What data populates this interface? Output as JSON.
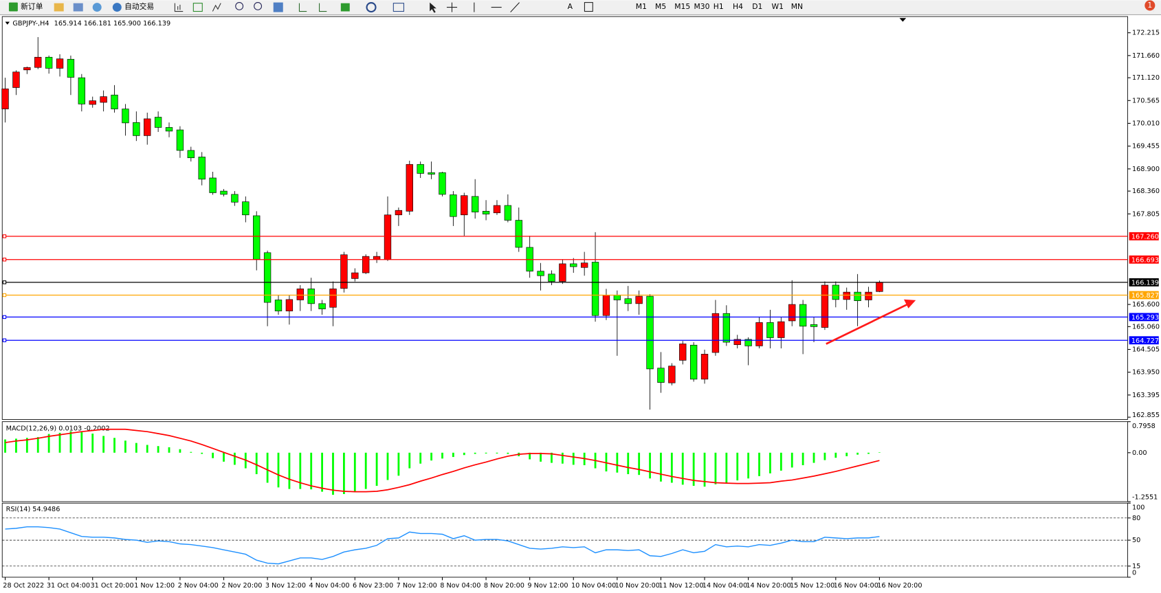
{
  "toolbar": {
    "new_order": "新订单",
    "auto_trading": "自动交易",
    "timeframes": [
      "M1",
      "M5",
      "M15",
      "M30",
      "H1",
      "H4",
      "D1",
      "W1",
      "MN"
    ],
    "badge": "1"
  },
  "chart_data": [
    {
      "type": "candlestick",
      "title": "GBPJPY-,H4",
      "subtitle": "165.914 166.181 165.900 166.139",
      "categories": [
        "28 Oct 2022",
        null,
        null,
        null,
        "31 Oct 04:00",
        null,
        null,
        null,
        "31 Oct 20:00",
        null,
        null,
        null,
        "1 Nov 12:00",
        null,
        null,
        null,
        "2 Nov 04:00",
        null,
        null,
        null,
        "2 Nov 20:00",
        null,
        null,
        null,
        "3 Nov 12:00",
        null,
        null,
        null,
        "4 Nov 04:00",
        null,
        null,
        null,
        "6 Nov 23:00",
        null,
        null,
        null,
        "7 Nov 12:00",
        null,
        null,
        null,
        "8 Nov 04:00",
        null,
        null,
        null,
        "8 Nov 20:00",
        null,
        null,
        null,
        "9 Nov 12:00",
        null,
        null,
        null,
        "10 Nov 04:00",
        null,
        null,
        null,
        "10 Nov 20:00",
        null,
        null,
        null,
        "11 Nov 12:00",
        null,
        null,
        null,
        "14 Nov 04:00",
        null,
        null,
        null,
        "14 Nov 20:00",
        null,
        null,
        null,
        "15 Nov 12:00",
        null,
        null,
        null,
        "16 Nov 04:00",
        null,
        null,
        null,
        "16 Nov 20:00"
      ],
      "open": [
        170.36,
        170.88,
        171.31,
        171.37,
        171.62,
        171.35,
        171.57,
        171.12,
        170.47,
        170.52,
        170.7,
        170.36,
        170.03,
        169.71,
        170.16,
        169.91,
        169.85,
        169.35,
        169.19,
        168.68,
        168.36,
        168.28,
        168.1,
        167.76,
        166.86,
        165.71,
        165.44,
        165.71,
        165.98,
        165.62,
        165.53,
        165.99,
        166.23,
        166.37,
        166.7,
        166.7,
        167.78,
        167.87,
        169.01,
        168.81,
        168.81,
        168.27,
        167.78,
        168.23,
        167.87,
        167.83,
        168.01,
        167.65,
        166.99,
        166.41,
        166.34,
        166.16,
        166.59,
        166.5,
        166.63,
        165.33,
        165.83,
        165.74,
        165.62,
        165.8,
        164.05,
        163.69,
        164.24,
        164.61,
        163.78,
        164.43,
        165.38,
        164.62,
        164.75,
        164.59,
        165.16,
        164.79,
        165.2,
        165.6,
        165.11,
        165.04,
        166.07,
        165.72,
        165.9,
        165.71,
        165.914
      ],
      "high": [
        171.12,
        171.3,
        171.39,
        172.11,
        171.66,
        171.69,
        171.66,
        171.21,
        170.66,
        170.81,
        170.94,
        170.48,
        170.3,
        170.27,
        170.3,
        170.03,
        169.94,
        169.44,
        169.31,
        168.83,
        168.41,
        168.36,
        168.23,
        167.87,
        166.91,
        165.83,
        165.83,
        166.07,
        166.25,
        165.71,
        166.16,
        166.88,
        166.48,
        166.82,
        166.88,
        168.23,
        167.96,
        169.1,
        169.08,
        169.08,
        168.83,
        168.36,
        168.32,
        168.65,
        168.14,
        168.14,
        168.28,
        167.96,
        167.27,
        166.61,
        166.43,
        166.7,
        166.73,
        166.88,
        167.36,
        165.98,
        165.94,
        166.05,
        165.94,
        165.85,
        164.44,
        164.17,
        164.71,
        164.68,
        164.5,
        165.71,
        165.58,
        164.86,
        164.8,
        165.29,
        165.47,
        165.29,
        166.19,
        165.71,
        165.29,
        166.16,
        166.16,
        166.01,
        166.34,
        166.03,
        166.181
      ],
      "low": [
        170.03,
        170.7,
        171.21,
        171.33,
        171.22,
        171.15,
        170.7,
        170.3,
        170.39,
        170.3,
        170.27,
        169.71,
        169.58,
        169.49,
        169.8,
        169.67,
        169.17,
        169.08,
        168.5,
        168.27,
        168.23,
        168.0,
        167.6,
        166.43,
        165.07,
        165.35,
        165.11,
        165.44,
        165.44,
        165.35,
        165.07,
        165.89,
        166.16,
        166.34,
        166.61,
        166.66,
        167.51,
        167.78,
        168.68,
        168.65,
        168.23,
        167.51,
        167.27,
        167.69,
        167.65,
        167.78,
        167.6,
        166.88,
        166.25,
        165.94,
        166.07,
        166.1,
        166.37,
        166.3,
        165.18,
        165.22,
        164.35,
        165.44,
        165.35,
        163.04,
        163.45,
        163.63,
        164.14,
        163.72,
        163.67,
        164.35,
        164.59,
        164.53,
        164.12,
        164.53,
        164.53,
        164.53,
        165.07,
        164.39,
        164.68,
        164.98,
        165.53,
        165.47,
        165.07,
        165.53,
        165.9
      ],
      "close": [
        170.85,
        171.26,
        171.37,
        171.62,
        171.35,
        171.58,
        171.13,
        170.48,
        170.56,
        170.66,
        170.36,
        170.02,
        169.71,
        170.12,
        169.91,
        169.82,
        169.35,
        169.17,
        168.65,
        168.32,
        168.28,
        168.09,
        167.78,
        166.7,
        165.65,
        165.44,
        165.72,
        165.98,
        165.62,
        165.49,
        165.98,
        166.81,
        166.37,
        166.77,
        166.77,
        167.78,
        167.89,
        169.01,
        168.79,
        168.77,
        168.28,
        167.74,
        168.25,
        167.85,
        167.8,
        168.01,
        167.65,
        166.99,
        166.41,
        166.3,
        166.16,
        166.59,
        166.52,
        166.61,
        165.33,
        165.83,
        165.71,
        165.62,
        165.8,
        164.03,
        163.7,
        164.1,
        164.64,
        163.78,
        164.39,
        165.38,
        164.68,
        164.75,
        164.59,
        165.16,
        164.79,
        165.18,
        165.6,
        165.07,
        165.06,
        166.07,
        165.72,
        165.9,
        165.69,
        165.9,
        166.139
      ],
      "up_color": "#ff0000",
      "down_color": "#00ff00",
      "ylim": [
        162.8,
        172.61
      ],
      "yticks": [
        172.215,
        {
          "value": 171.66,
          "label": "171.660"
        },
        {
          "value": 171.12,
          "label": "171.120"
        },
        170.565,
        {
          "value": 170.01,
          "label": "170.010"
        },
        169.455,
        {
          "value": 168.9,
          "label": "168.900"
        },
        {
          "value": 168.36,
          "label": "168.360"
        },
        167.805,
        {
          "value": 165.6,
          "label": "165.600"
        },
        {
          "value": 165.06,
          "label": "165.060"
        },
        164.505,
        {
          "value": 163.95,
          "label": "163.950"
        },
        163.395,
        162.855
      ],
      "levels": [
        {
          "value": 167.26,
          "label": "167.260",
          "color": "#ff0000"
        },
        {
          "value": 166.693,
          "color": "#ff0000"
        },
        {
          "value": 166.139,
          "color": "#000000"
        },
        {
          "value": 165.827,
          "color": "#ffa500"
        },
        {
          "value": 165.293,
          "color": "#0000ff"
        },
        {
          "value": 164.727,
          "color": "#0000ff"
        }
      ]
    },
    {
      "type": "macd",
      "title": "MACD(12,26,9) 0.0103 -0.2002",
      "series": [
        {
          "kind": "bar",
          "color": "#00ff00",
          "values": [
            0.34,
            0.36,
            0.38,
            0.4,
            0.48,
            0.51,
            0.55,
            0.53,
            0.49,
            0.43,
            0.38,
            0.31,
            0.25,
            0.2,
            0.17,
            0.14,
            0.09,
            0.02,
            -0.03,
            -0.14,
            -0.23,
            -0.31,
            -0.4,
            -0.55,
            -0.77,
            -0.89,
            -0.93,
            -0.93,
            -0.94,
            -1.0,
            -1.08,
            -1.06,
            -0.99,
            -0.93,
            -0.85,
            -0.7,
            -0.59,
            -0.4,
            -0.28,
            -0.2,
            -0.15,
            -0.11,
            -0.06,
            -0.03,
            -0.02,
            -0.02,
            -0.03,
            -0.09,
            -0.17,
            -0.23,
            -0.26,
            -0.28,
            -0.31,
            -0.32,
            -0.4,
            -0.48,
            -0.51,
            -0.55,
            -0.57,
            -0.66,
            -0.74,
            -0.77,
            -0.82,
            -0.85,
            -0.87,
            -0.81,
            -0.77,
            -0.71,
            -0.66,
            -0.6,
            -0.53,
            -0.46,
            -0.38,
            -0.32,
            -0.26,
            -0.19,
            -0.13,
            -0.09,
            -0.05,
            -0.03,
            0.0103
          ]
        },
        {
          "kind": "line",
          "color": "#ff0000",
          "values": [
            0.26,
            0.3,
            0.33,
            0.37,
            0.42,
            0.46,
            0.5,
            0.54,
            0.57,
            0.6,
            0.6,
            0.6,
            0.57,
            0.54,
            0.49,
            0.44,
            0.37,
            0.3,
            0.21,
            0.11,
            0.01,
            -0.09,
            -0.19,
            -0.31,
            -0.44,
            -0.57,
            -0.68,
            -0.77,
            -0.85,
            -0.91,
            -0.96,
            -0.99,
            -1.0,
            -1.0,
            -0.99,
            -0.95,
            -0.89,
            -0.82,
            -0.73,
            -0.65,
            -0.56,
            -0.48,
            -0.39,
            -0.31,
            -0.24,
            -0.16,
            -0.09,
            -0.04,
            -0.02,
            -0.02,
            -0.03,
            -0.07,
            -0.11,
            -0.15,
            -0.2,
            -0.26,
            -0.32,
            -0.38,
            -0.43,
            -0.49,
            -0.55,
            -0.61,
            -0.66,
            -0.71,
            -0.74,
            -0.77,
            -0.78,
            -0.79,
            -0.79,
            -0.78,
            -0.77,
            -0.73,
            -0.7,
            -0.65,
            -0.6,
            -0.54,
            -0.48,
            -0.41,
            -0.34,
            -0.27,
            -0.2002
          ]
        }
      ],
      "ylim": [
        -1.2551,
        0.7958
      ],
      "yticks": [
        0.7958,
        {
          "value": 0,
          "label": "0.00"
        },
        -1.2551
      ]
    },
    {
      "type": "line",
      "title": "RSI(14) 54.9486",
      "series": [
        {
          "color": "#1e90ff",
          "values": [
            65,
            66,
            68,
            68,
            67,
            65,
            60,
            55,
            54,
            54,
            53,
            51,
            50,
            47,
            49,
            48,
            45,
            44,
            42,
            40,
            37,
            34,
            31,
            23,
            19,
            18,
            22,
            26,
            26,
            24,
            28,
            34,
            37,
            39,
            43,
            52,
            53,
            61,
            59,
            59,
            58,
            52,
            56,
            50,
            51,
            51,
            49,
            44,
            39,
            38,
            39,
            41,
            40,
            41,
            33,
            37,
            37,
            36,
            37,
            29,
            28,
            32,
            37,
            33,
            35,
            44,
            41,
            42,
            41,
            44,
            43,
            46,
            50,
            48,
            48,
            54,
            53,
            52,
            53,
            53,
            54.9486
          ]
        }
      ],
      "ylim": [
        0,
        100
      ],
      "yticks": [
        100,
        80,
        50,
        15,
        0
      ]
    }
  ]
}
